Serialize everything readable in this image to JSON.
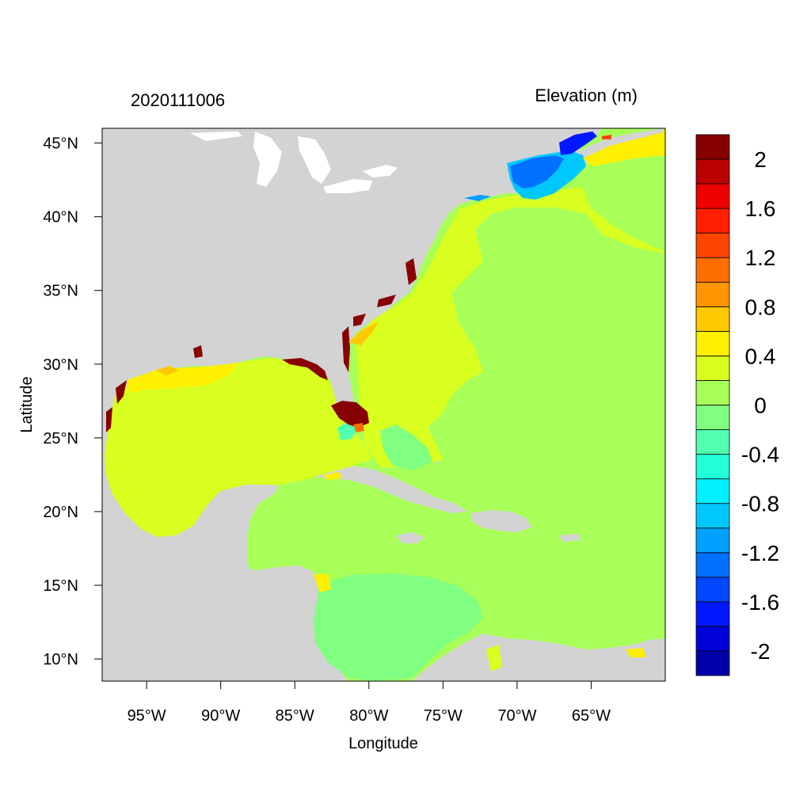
{
  "figure": {
    "left_title": "2020111006",
    "right_title": "Elevation (m)",
    "xlabel": "Longitude",
    "ylabel": "Latitude"
  },
  "axes": {
    "lon_range": [
      -98,
      -60
    ],
    "lat_range": [
      8.5,
      46
    ],
    "x_ticks": [
      {
        "value": -95,
        "label": "95°W"
      },
      {
        "value": -90,
        "label": "90°W"
      },
      {
        "value": -85,
        "label": "85°W"
      },
      {
        "value": -80,
        "label": "80°W"
      },
      {
        "value": -75,
        "label": "75°W"
      },
      {
        "value": -70,
        "label": "70°W"
      },
      {
        "value": -65,
        "label": "65°W"
      }
    ],
    "y_ticks": [
      {
        "value": 10,
        "label": "10°N"
      },
      {
        "value": 15,
        "label": "15°N"
      },
      {
        "value": 20,
        "label": "20°N"
      },
      {
        "value": 25,
        "label": "25°N"
      },
      {
        "value": 30,
        "label": "30°N"
      },
      {
        "value": 35,
        "label": "35°N"
      },
      {
        "value": 40,
        "label": "40°N"
      },
      {
        "value": 45,
        "label": "45°N"
      }
    ]
  },
  "colorbar": {
    "colors": [
      "#0000aa",
      "#0000d8",
      "#0018ff",
      "#0048ff",
      "#0070ff",
      "#00a0ff",
      "#00c8ff",
      "#00f0ff",
      "#20ffd8",
      "#50ffb0",
      "#80ff80",
      "#a8ff58",
      "#d8ff20",
      "#fff000",
      "#ffc800",
      "#ff9600",
      "#ff6e00",
      "#ff4600",
      "#ff1e00",
      "#ee0000",
      "#bb0000",
      "#880000"
    ],
    "tick_labels": [
      "-2",
      "-1.6",
      "-1.2",
      "-0.8",
      "-0.4",
      "0",
      "0.4",
      "0.8",
      "1.2",
      "1.6",
      "2"
    ]
  },
  "map_colors": {
    "land": "#d3d3d3",
    "ocean_default": "#a8ff58",
    "gulf": "#d8ff20",
    "caribbean_sw": "#80ff80",
    "high_surge": "#880000",
    "negative_surge": "#0048ff"
  }
}
